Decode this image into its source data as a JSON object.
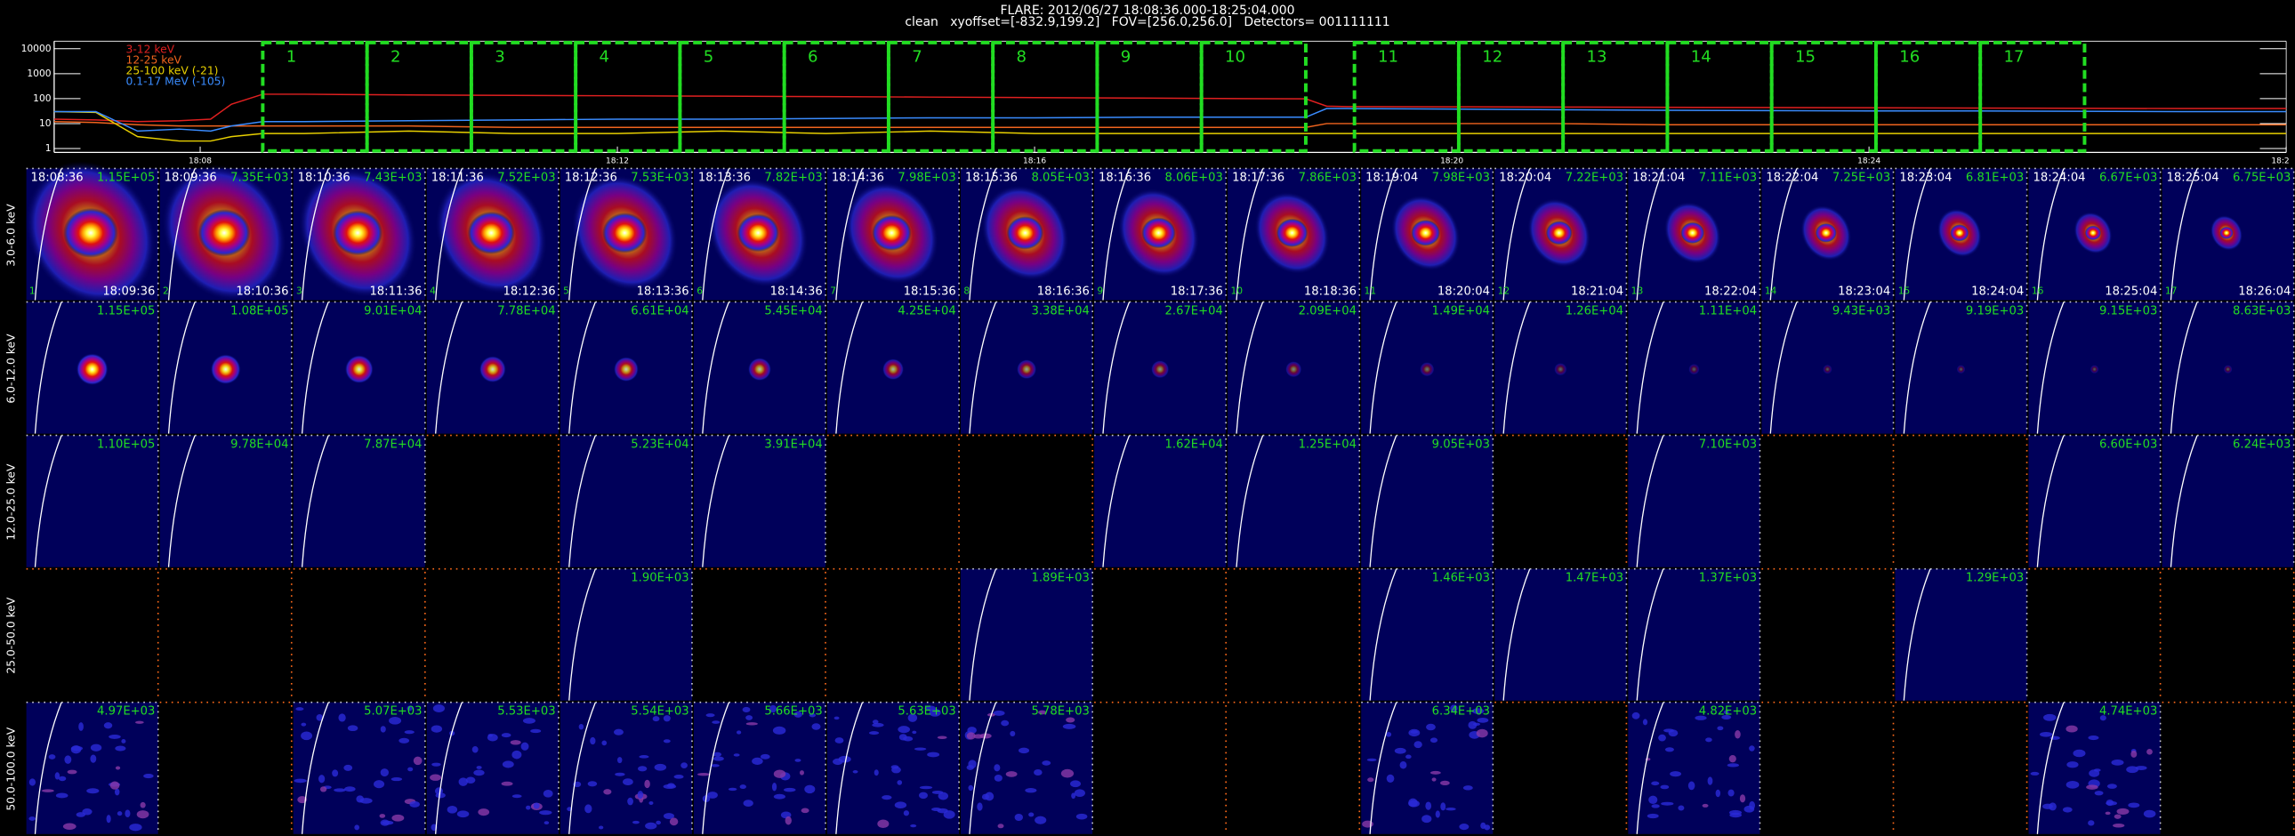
{
  "header": {
    "title": "FLARE: 2012/06/27 18:08:36.000-18:25:04.000",
    "subtitle": "clean   xyoffset=[-832.9,199.2]   FOV=[256.0,256.0]   Detectors= 001111111"
  },
  "chart_data": {
    "type": "line",
    "log_y": true,
    "x": [
      6.6,
      7.0,
      7.4,
      7.8,
      8.1,
      8.3,
      8.6,
      9,
      10,
      11,
      12,
      13,
      14,
      15,
      16,
      17,
      18,
      18.6,
      18.8,
      19,
      20,
      21,
      22,
      23,
      24,
      25,
      26,
      27,
      28
    ],
    "series": [
      {
        "name": "3-12 keV",
        "color": "#e02020",
        "values": [
          15,
          14,
          12,
          13,
          15,
          60,
          150,
          150,
          140,
          135,
          130,
          125,
          120,
          115,
          110,
          105,
          100,
          98,
          50,
          48,
          47,
          46,
          45,
          44,
          43,
          42,
          41,
          40,
          40
        ]
      },
      {
        "name": "12-25 keV",
        "color": "#f0641e",
        "values": [
          12,
          11,
          9,
          8,
          8,
          8,
          8,
          8,
          8,
          7,
          7,
          7,
          7,
          7,
          7,
          7,
          7,
          7,
          10,
          10,
          10,
          10,
          9,
          9,
          9,
          9,
          9,
          9,
          9
        ]
      },
      {
        "name": "25-100 keV (-21)",
        "color": "#e8d000",
        "values": [
          30,
          28,
          3,
          2,
          2,
          3,
          4,
          4,
          5,
          4,
          4,
          5,
          4,
          5,
          4,
          4,
          4,
          4,
          4,
          4,
          4,
          4,
          4,
          4,
          4,
          4,
          4,
          4,
          4
        ]
      },
      {
        "name": "0.1-17 MeV (-105)",
        "color": "#3a8cff",
        "values": [
          30,
          30,
          5,
          6,
          5,
          8,
          12,
          12,
          13,
          14,
          15,
          15,
          16,
          17,
          17,
          18,
          18,
          18,
          40,
          40,
          38,
          36,
          34,
          33,
          32,
          32,
          31,
          30,
          30
        ]
      }
    ],
    "xlim": [
      6.6,
      28.0
    ],
    "xticks": [
      {
        "value": 8,
        "label": "18:08"
      },
      {
        "value": 12,
        "label": "18:12"
      },
      {
        "value": 16,
        "label": "18:16"
      },
      {
        "value": 20,
        "label": "18:20"
      },
      {
        "value": 24,
        "label": "18:24"
      },
      {
        "value": 28,
        "label": "18:2"
      }
    ],
    "ylim": [
      0.7,
      20000
    ],
    "yticks": [
      1,
      10,
      100,
      1000,
      10000
    ],
    "interval_color": "#22dd22",
    "intervals": [
      {
        "label": "1",
        "start": 8.6,
        "end": 9.6
      },
      {
        "label": "2",
        "start": 9.6,
        "end": 10.6
      },
      {
        "label": "3",
        "start": 10.6,
        "end": 11.6
      },
      {
        "label": "4",
        "start": 11.6,
        "end": 12.6
      },
      {
        "label": "5",
        "start": 12.6,
        "end": 13.6
      },
      {
        "label": "6",
        "start": 13.6,
        "end": 14.6
      },
      {
        "label": "7",
        "start": 14.6,
        "end": 15.6
      },
      {
        "label": "8",
        "start": 15.6,
        "end": 16.6
      },
      {
        "label": "9",
        "start": 16.6,
        "end": 17.6
      },
      {
        "label": "10",
        "start": 17.6,
        "end": 18.6
      },
      {
        "label": "11",
        "start": 19.0667,
        "end": 20.0667
      },
      {
        "label": "12",
        "start": 20.0667,
        "end": 21.0667
      },
      {
        "label": "13",
        "start": 21.0667,
        "end": 22.0667
      },
      {
        "label": "14",
        "start": 22.0667,
        "end": 23.0667
      },
      {
        "label": "15",
        "start": 23.0667,
        "end": 24.0667
      },
      {
        "label": "16",
        "start": 24.0667,
        "end": 25.0667
      },
      {
        "label": "17",
        "start": 25.0667,
        "end": 26.0667
      }
    ]
  },
  "image_grid": {
    "row_labels": [
      "3.0-6.0 keV",
      "6.0-12.0 keV",
      "12.0-25.0 keV",
      "25.0-50.0 keV",
      "50.0-100.0 keV"
    ],
    "columns": [
      {
        "start": "18:08:36",
        "end": "18:09:36"
      },
      {
        "start": "18:09:36",
        "end": "18:10:36"
      },
      {
        "start": "18:10:36",
        "end": "18:11:36"
      },
      {
        "start": "18:11:36",
        "end": "18:12:36"
      },
      {
        "start": "18:12:36",
        "end": "18:13:36"
      },
      {
        "start": "18:13:36",
        "end": "18:14:36"
      },
      {
        "start": "18:14:36",
        "end": "18:15:36"
      },
      {
        "start": "18:15:36",
        "end": "18:16:36"
      },
      {
        "start": "18:16:36",
        "end": "18:17:36"
      },
      {
        "start": "18:17:36",
        "end": "18:18:36"
      },
      {
        "start": "18:19:04",
        "end": "18:20:04"
      },
      {
        "start": "18:20:04",
        "end": "18:21:04"
      },
      {
        "start": "18:21:04",
        "end": "18:22:04"
      },
      {
        "start": "18:22:04",
        "end": "18:23:04"
      },
      {
        "start": "18:23:04",
        "end": "18:24:04"
      },
      {
        "start": "18:24:04",
        "end": "18:25:04"
      },
      {
        "start": "18:25:04",
        "end": "18:26:04"
      }
    ],
    "values": [
      [
        "1.15E+05",
        "7.35E+03",
        "7.43E+03",
        "7.52E+03",
        "7.53E+03",
        "7.82E+03",
        "7.98E+03",
        "8.05E+03",
        "8.06E+03",
        "7.86E+03",
        "7.98E+03",
        "7.22E+03",
        "7.11E+03",
        "7.25E+03",
        "6.81E+03",
        "6.67E+03",
        "6.75E+03"
      ],
      [
        "1.15E+05",
        "1.08E+05",
        "9.01E+04",
        "7.78E+04",
        "6.61E+04",
        "5.45E+04",
        "4.25E+04",
        "3.38E+04",
        "2.67E+04",
        "2.09E+04",
        "1.49E+04",
        "1.26E+04",
        "1.11E+04",
        "9.43E+03",
        "9.19E+03",
        "9.15E+03",
        "8.63E+03"
      ],
      [
        "1.10E+05",
        "9.78E+04",
        "7.87E+04",
        null,
        "5.23E+04",
        "3.91E+04",
        null,
        null,
        "1.62E+04",
        "1.25E+04",
        "9.05E+03",
        null,
        "7.10E+03",
        null,
        null,
        "6.60E+03",
        "6.24E+03"
      ],
      [
        null,
        null,
        null,
        null,
        "1.90E+03",
        null,
        null,
        "1.89E+03",
        null,
        null,
        "1.46E+03",
        "1.47E+03",
        "1.37E+03",
        null,
        "1.29E+03",
        null,
        null
      ],
      [
        "4.97E+03",
        null,
        "5.07E+03",
        "5.53E+03",
        "5.54E+03",
        "5.66E+03",
        "5.63E+03",
        "5.78E+03",
        null,
        null,
        "6.34E+03",
        null,
        "4.82E+03",
        null,
        null,
        "4.74E+03",
        null
      ]
    ]
  }
}
